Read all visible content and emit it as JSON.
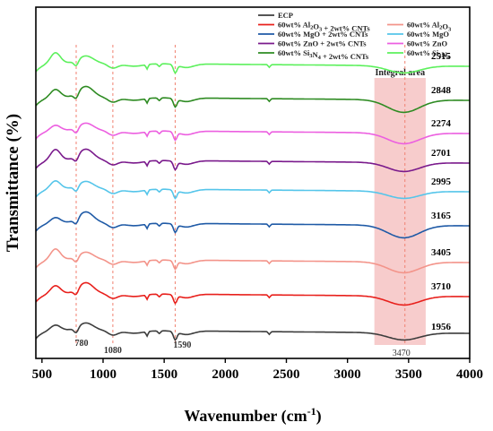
{
  "chart_data": {
    "type": "line",
    "title": "",
    "xlabel": "Wavenumber (cm",
    "xlabel_sup": "-1",
    "xlabel_suffix": ")",
    "ylabel": "Transmittance (%)",
    "xlim": [
      450,
      4000
    ],
    "xticks": [
      500,
      1000,
      1500,
      2000,
      2500,
      3000,
      3500,
      4000
    ],
    "y_ticks_shown": false,
    "grid": false,
    "legend_position": "top-right",
    "shaded_region": {
      "label": "Integral area",
      "x_range": [
        3220,
        3640
      ],
      "color": "#f4b6b6"
    },
    "reference_lines": [
      {
        "x": 780,
        "label": "780"
      },
      {
        "x": 1080,
        "label": "1080"
      },
      {
        "x": 1590,
        "label": "1590"
      },
      {
        "x": 3470,
        "label": "3470"
      }
    ],
    "series": [
      {
        "name": "ECP",
        "color": "#3d3d3d",
        "baseline": 0,
        "integral_value": "1956"
      },
      {
        "name": "60wt% Al2O3 + 2wt% CNTs",
        "color": "#e8201c",
        "baseline": 1,
        "integral_value": "3710"
      },
      {
        "name": "60wt% Al2O3",
        "color": "#f3948a",
        "baseline": 2,
        "integral_value": "3405"
      },
      {
        "name": "60wt% MgO + 2wt% CNTs",
        "color": "#1f5aa6",
        "baseline": 3,
        "integral_value": "3165"
      },
      {
        "name": "60wt% MgO",
        "color": "#55c5ea",
        "baseline": 4,
        "integral_value": "2995"
      },
      {
        "name": "60wt% ZnO + 2wt% CNTs",
        "color": "#7a1a8c",
        "baseline": 5,
        "integral_value": "2701"
      },
      {
        "name": "60wt% ZnO",
        "color": "#ec5fe0",
        "baseline": 6,
        "integral_value": "2274"
      },
      {
        "name": "60wt% Si3N4 + 2wt% CNTs",
        "color": "#2e8b22",
        "baseline": 7,
        "integral_value": "2848"
      },
      {
        "name": "60wt% Si3N4",
        "color": "#5cf05c",
        "baseline": 8,
        "integral_value": "2515"
      }
    ],
    "legend_order": [
      0,
      1,
      3,
      5,
      7,
      2,
      4,
      6,
      8
    ]
  }
}
